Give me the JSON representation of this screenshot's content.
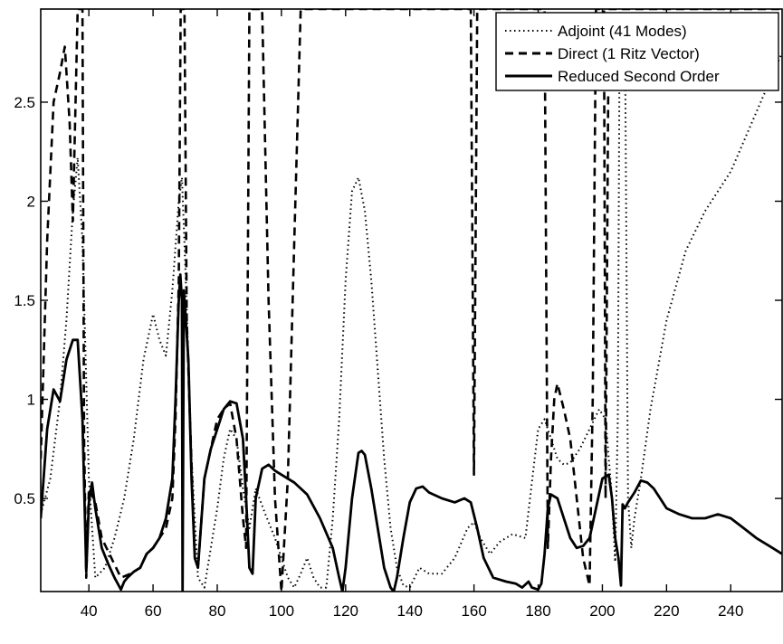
{
  "colors": {
    "line": "#000000",
    "background": "#ffffff"
  },
  "chart_data": {
    "type": "line",
    "title": "",
    "xlabel": "",
    "ylabel": "",
    "xlim": [
      25,
      256
    ],
    "ylim": [
      0.03,
      2.97
    ],
    "grid": false,
    "legend_position": "top-right",
    "x_ticks": [
      40,
      60,
      80,
      100,
      120,
      140,
      160,
      180,
      200,
      220,
      240
    ],
    "x_tick_labels": [
      "40",
      "60",
      "80",
      "100",
      "120",
      "140",
      "160",
      "180",
      "200",
      "220",
      "240"
    ],
    "y_ticks": [
      0.5,
      1,
      1.5,
      2,
      2.5
    ],
    "y_tick_labels": [
      "0.5",
      "1",
      "1.5",
      "2",
      "2.5"
    ],
    "series": [
      {
        "name": "Adjoint (41 Modes)",
        "style": "dotted",
        "x": [
          25,
          28,
          31,
          33,
          35,
          36.5,
          38,
          40,
          42,
          45,
          48,
          51,
          54,
          57,
          60,
          62,
          64,
          66,
          68,
          69,
          70,
          71,
          72,
          74,
          76,
          78,
          80,
          82,
          84,
          86,
          88,
          90,
          92,
          95,
          98,
          100,
          102,
          104,
          106,
          108,
          110,
          112,
          114,
          116,
          118,
          120,
          122,
          124,
          126,
          128,
          130,
          132,
          134,
          136,
          138,
          140,
          143,
          146,
          150,
          154,
          158,
          160,
          162,
          165,
          168,
          172,
          176,
          180,
          182,
          184,
          186,
          188,
          190,
          193,
          196,
          199,
          201,
          203,
          204,
          204.8,
          205.4,
          206.2,
          207,
          208,
          209,
          210,
          212,
          215,
          220,
          226,
          232,
          240,
          248,
          256
        ],
        "y": [
          0.42,
          0.6,
          1.0,
          1.4,
          1.95,
          2.22,
          1.8,
          0.6,
          0.1,
          0.15,
          0.3,
          0.5,
          0.8,
          1.2,
          1.43,
          1.3,
          1.22,
          1.55,
          2.0,
          2.12,
          1.7,
          1.2,
          0.7,
          0.1,
          0.05,
          0.25,
          0.45,
          0.7,
          0.85,
          0.8,
          0.55,
          0.35,
          0.55,
          0.42,
          0.3,
          0.2,
          0.1,
          0.05,
          0.12,
          0.2,
          0.1,
          0.05,
          0.05,
          0.4,
          0.9,
          1.6,
          2.05,
          2.12,
          1.95,
          1.6,
          1.15,
          0.7,
          0.35,
          0.15,
          0.06,
          0.05,
          0.15,
          0.12,
          0.12,
          0.2,
          0.35,
          0.38,
          0.3,
          0.22,
          0.28,
          0.32,
          0.3,
          0.85,
          0.9,
          0.8,
          0.7,
          0.67,
          0.68,
          0.75,
          0.85,
          0.95,
          0.9,
          0.5,
          0.18,
          0.9,
          2.95,
          2.95,
          2.95,
          0.5,
          0.25,
          0.4,
          0.6,
          0.95,
          1.4,
          1.75,
          1.95,
          2.15,
          2.45,
          2.75
        ]
      },
      {
        "name": "Direct (1 Ritz Vector)",
        "style": "dashed",
        "x": [
          25,
          27,
          29,
          31,
          32.5,
          34,
          35,
          36.5,
          37,
          38,
          38.5,
          39.2,
          40,
          42,
          44,
          47,
          50,
          53,
          56,
          58,
          60,
          62,
          64,
          66,
          67,
          68,
          68.6,
          69.2,
          69.8,
          70.5,
          71.5,
          73,
          74,
          76,
          78,
          80,
          82,
          84,
          86,
          88,
          89,
          90,
          90.5,
          91,
          92,
          94,
          96,
          98,
          100,
          102,
          104,
          106,
          108,
          110,
          112,
          114,
          116,
          118,
          120,
          122,
          124,
          126,
          128,
          130,
          132,
          134,
          136,
          138,
          140,
          143,
          146,
          150,
          154,
          157,
          158,
          159,
          160,
          161,
          162,
          165,
          168,
          172,
          176,
          179,
          180,
          181,
          182,
          183,
          184,
          185,
          186,
          188,
          190,
          192,
          194,
          196,
          197,
          198,
          199,
          200,
          200.5,
          201,
          202,
          203,
          204,
          205,
          206,
          207,
          208,
          210,
          213,
          218,
          224,
          232,
          240,
          248,
          256
        ],
        "y": [
          0.7,
          1.8,
          2.5,
          2.65,
          2.78,
          2.4,
          1.9,
          2.97,
          2.97,
          2.97,
          0.8,
          0.1,
          0.55,
          0.48,
          0.3,
          0.2,
          0.1,
          0.12,
          0.15,
          0.22,
          0.25,
          0.3,
          0.35,
          0.5,
          0.9,
          1.6,
          2.97,
          2.97,
          2.97,
          1.4,
          0.9,
          0.2,
          0.15,
          0.6,
          0.75,
          0.9,
          0.95,
          0.98,
          0.8,
          0.4,
          0.25,
          2.97,
          2.97,
          2.97,
          2.97,
          2.97,
          1.5,
          0.5,
          0.03,
          0.6,
          1.8,
          2.97,
          2.97,
          2.97,
          2.97,
          2.97,
          2.97,
          2.97,
          2.97,
          2.97,
          2.97,
          2.97,
          2.97,
          2.97,
          2.97,
          2.97,
          2.97,
          2.97,
          2.97,
          2.97,
          2.97,
          2.97,
          2.97,
          2.97,
          2.97,
          2.97,
          0.62,
          2.97,
          2.97,
          2.97,
          2.97,
          2.97,
          2.97,
          2.97,
          2.97,
          2.97,
          2.97,
          0.25,
          0.7,
          1.0,
          1.08,
          0.95,
          0.8,
          0.5,
          0.2,
          0.06,
          1.0,
          2.97,
          2.97,
          2.97,
          2.97,
          0.5,
          2.97,
          2.97,
          2.97,
          2.97,
          2.97,
          2.97,
          2.97,
          2.97,
          2.97,
          2.97,
          2.97,
          2.97,
          2.97,
          2.97,
          2.97
        ]
      },
      {
        "name": "Reduced Second Order",
        "style": "solid",
        "x": [
          25,
          27,
          29,
          31,
          33,
          35,
          36.5,
          38,
          39.2,
          40,
          41,
          42,
          44,
          46,
          48,
          50,
          51,
          52,
          54,
          56,
          58,
          60,
          62,
          64,
          66,
          67,
          68,
          68.5,
          69,
          69.2,
          69.6,
          70.2,
          71,
          72,
          73,
          74,
          76,
          78,
          80,
          82,
          84,
          86,
          88,
          89,
          90,
          91,
          92,
          94,
          96,
          98,
          100,
          104,
          108,
          112,
          116,
          118,
          119,
          120,
          122,
          124,
          125,
          126,
          128,
          130,
          132,
          134,
          135,
          136,
          138,
          140,
          142,
          144,
          146,
          150,
          154,
          157,
          159,
          161,
          163,
          166,
          170,
          173,
          175,
          177,
          178,
          180,
          181,
          182,
          183,
          184,
          186,
          188,
          190,
          192,
          194,
          196,
          198,
          200,
          202,
          203,
          204,
          205,
          205.8,
          206.3,
          207,
          208,
          210,
          212,
          214,
          216,
          218,
          220,
          224,
          228,
          232,
          236,
          240,
          244,
          248,
          252,
          256
        ],
        "y": [
          0.4,
          0.85,
          1.05,
          0.99,
          1.2,
          1.3,
          1.3,
          0.9,
          0.13,
          0.48,
          0.58,
          0.45,
          0.25,
          0.17,
          0.1,
          0.04,
          0.08,
          0.1,
          0.13,
          0.15,
          0.22,
          0.25,
          0.3,
          0.4,
          0.6,
          1.0,
          1.5,
          1.63,
          1.5,
          0.03,
          1.55,
          1.4,
          1.2,
          0.6,
          0.2,
          0.15,
          0.6,
          0.75,
          0.85,
          0.95,
          0.99,
          0.98,
          0.8,
          0.5,
          0.15,
          0.12,
          0.5,
          0.65,
          0.67,
          0.64,
          0.62,
          0.58,
          0.52,
          0.4,
          0.25,
          0.1,
          0.03,
          0.15,
          0.5,
          0.73,
          0.74,
          0.72,
          0.55,
          0.35,
          0.15,
          0.05,
          0.03,
          0.1,
          0.3,
          0.48,
          0.55,
          0.56,
          0.53,
          0.5,
          0.48,
          0.5,
          0.48,
          0.35,
          0.2,
          0.1,
          0.08,
          0.07,
          0.05,
          0.08,
          0.05,
          0.04,
          0.07,
          0.22,
          0.45,
          0.52,
          0.5,
          0.4,
          0.3,
          0.25,
          0.26,
          0.3,
          0.45,
          0.6,
          0.62,
          0.5,
          0.3,
          0.2,
          0.06,
          0.47,
          0.45,
          0.48,
          0.53,
          0.59,
          0.58,
          0.55,
          0.5,
          0.45,
          0.42,
          0.4,
          0.4,
          0.42,
          0.4,
          0.35,
          0.3,
          0.26,
          0.22
        ]
      }
    ]
  }
}
